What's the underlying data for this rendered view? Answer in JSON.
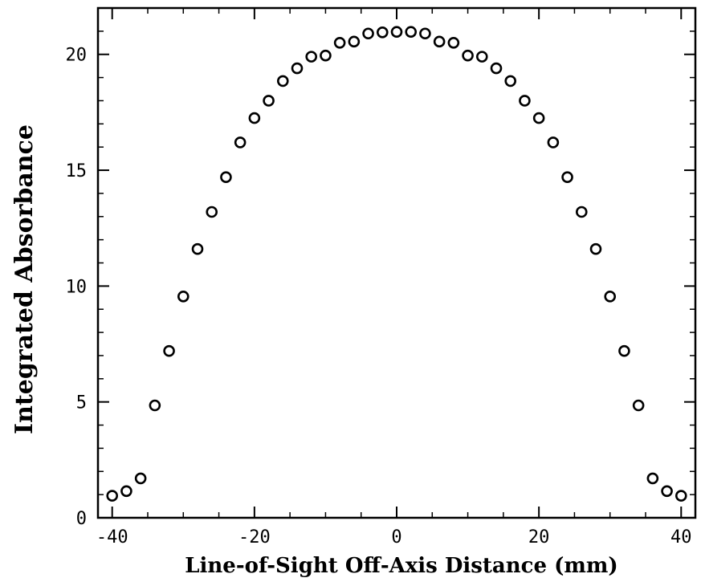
{
  "chart_data": {
    "type": "scatter",
    "title": "",
    "xlabel": "Line-of-Sight Off-Axis Distance (mm)",
    "ylabel": "Integrated Absorbance",
    "xlim": [
      -42,
      42
    ],
    "ylim": [
      0,
      22
    ],
    "x_ticks": [
      -40,
      -20,
      0,
      20,
      40
    ],
    "x_tick_labels": [
      "-40",
      "-20",
      "0",
      "20",
      "40"
    ],
    "y_ticks": [
      0,
      5,
      10,
      15,
      20
    ],
    "y_tick_labels": [
      "0",
      "5",
      "10",
      "15",
      "20"
    ],
    "x_minor_step": 5,
    "y_minor_step": 1,
    "grid": false,
    "legend": "none",
    "marker": "open-circle",
    "marker_color": "#000000",
    "series": [
      {
        "x": [
          -40,
          -38,
          -36,
          -34,
          -32,
          -30,
          -28,
          -26,
          -24,
          -22,
          -20,
          -18,
          -16,
          -14,
          -12,
          -10,
          -8,
          -6,
          -4,
          -2,
          0,
          2,
          4,
          6,
          8,
          10,
          12,
          14,
          16,
          18,
          20,
          22,
          24,
          26,
          28,
          30,
          32,
          34,
          36,
          38,
          40
        ],
        "y": [
          0.95,
          1.15,
          1.7,
          4.85,
          7.2,
          9.55,
          11.6,
          13.2,
          14.7,
          16.2,
          17.25,
          18.0,
          18.85,
          19.4,
          19.9,
          19.95,
          20.5,
          20.55,
          20.9,
          20.95,
          20.97,
          20.97,
          20.9,
          20.55,
          20.5,
          19.95,
          19.9,
          19.4,
          18.85,
          18.0,
          17.25,
          16.2,
          14.7,
          13.2,
          11.6,
          9.55,
          7.2,
          4.85,
          1.7,
          1.15,
          0.95
        ]
      }
    ]
  }
}
